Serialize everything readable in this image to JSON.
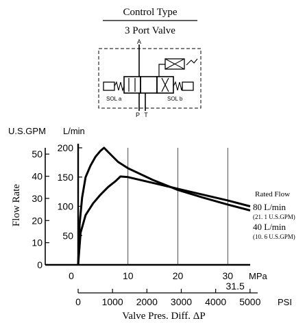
{
  "header": {
    "title": "Control Type",
    "subtitle": "3 Port Valve"
  },
  "symbol": {
    "port_a": "A",
    "port_p": "P",
    "port_t": "T",
    "sol_a": "SOL  a",
    "sol_b": "SOL  b"
  },
  "colors": {
    "ink": "#000000",
    "background": "#ffffff"
  },
  "chart_data": {
    "type": "line",
    "title": "",
    "xlabel": "Valve Pres. Diff. ΔP",
    "ylabel": "Flow Rate",
    "y_unit_left": "U.S.GPM",
    "y_unit_right": "L/min",
    "x_unit_top": "MPa",
    "x_unit_bottom": "PSI",
    "xlim_mpa": [
      0,
      34.5
    ],
    "ylim_lmin": [
      0,
      200
    ],
    "x_ticks_mpa": [
      {
        "value": 0,
        "label": "0"
      },
      {
        "value": 10,
        "label": "10"
      },
      {
        "value": 20,
        "label": "20"
      },
      {
        "value": 30,
        "label": "30"
      }
    ],
    "x_ticks_mpa_extra": [
      {
        "value": 31.5,
        "label": "31.5"
      }
    ],
    "x_ticks_psi": [
      {
        "value": 0,
        "label": "0"
      },
      {
        "value": 1000,
        "label": "1000"
      },
      {
        "value": 2000,
        "label": "2000"
      },
      {
        "value": 3000,
        "label": "3000"
      },
      {
        "value": 4000,
        "label": "4000"
      },
      {
        "value": 5000,
        "label": "5000"
      }
    ],
    "y_ticks_lmin": [
      {
        "value": 50,
        "label": "50"
      },
      {
        "value": 100,
        "label": "100"
      },
      {
        "value": 150,
        "label": "150"
      },
      {
        "value": 200,
        "label": "200"
      }
    ],
    "y_ticks_gpm": [
      {
        "value": 0,
        "label": "0"
      },
      {
        "value": 10,
        "label": "10"
      },
      {
        "value": 20,
        "label": "20"
      },
      {
        "value": 30,
        "label": "30"
      },
      {
        "value": 40,
        "label": "40"
      },
      {
        "value": 50,
        "label": "50"
      }
    ],
    "grid": "vertical",
    "legend": {
      "title": "Rated Flow",
      "entries": [
        {
          "main": "80 L/min",
          "sub": "(21. 1 U.S.GPM)"
        },
        {
          "main": "40 L/min",
          "sub": "(10. 6 U.S.GPM)"
        }
      ]
    },
    "series": [
      {
        "x": [
          0,
          0.3,
          0.8,
          1.5,
          2.5,
          3.5,
          4.5,
          5.2,
          6,
          8,
          10,
          15,
          20,
          25,
          30,
          34.5
        ],
        "y": [
          0,
          70,
          115,
          150,
          170,
          185,
          195,
          200,
          193,
          176,
          165,
          145,
          128,
          115,
          103,
          93
        ]
      },
      {
        "x": [
          0,
          0.5,
          1.5,
          3,
          4.5,
          6,
          7.5,
          8.5,
          10,
          15,
          20,
          25,
          30,
          34.5
        ],
        "y": [
          0,
          55,
          85,
          105,
          120,
          133,
          143,
          151,
          150,
          140,
          130,
          120,
          110,
          100
        ]
      }
    ]
  }
}
